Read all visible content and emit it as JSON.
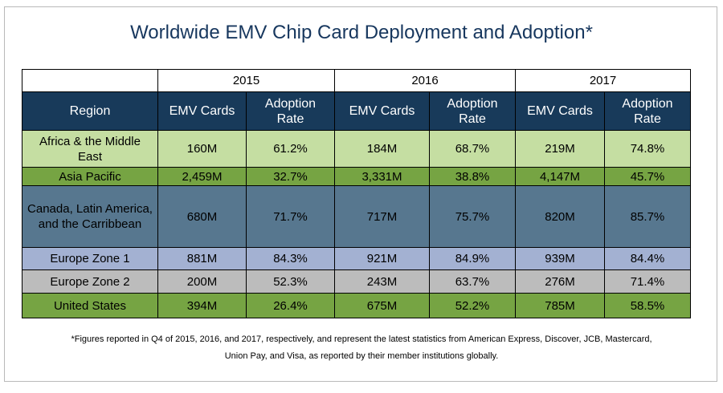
{
  "title": "Worldwide EMV Chip Card Deployment and Adoption*",
  "footnote": {
    "line1": "*Figures reported in Q4 of 2015, 2016, and 2017, respectively, and represent the latest statistics from American Express, Discover, JCB, Mastercard,",
    "line2": "Union Pay, and Visa, as reported by their member institutions globally."
  },
  "colors": {
    "title": "#17375e",
    "header_bg": "#183a5a",
    "africa_bg": "#c5dea2",
    "asia_bg": "#76a443",
    "canada_bg": "#57778f",
    "europe1_bg": "#a3b1d2",
    "europe2_bg": "#bcbcbc",
    "us_bg": "#76a443"
  },
  "chart_data": {
    "type": "table",
    "title": "Worldwide EMV Chip Card Deployment and Adoption*",
    "years": [
      "2015",
      "2016",
      "2017"
    ],
    "columns": [
      "Region",
      "EMV Cards",
      "Adoption Rate",
      "EMV Cards",
      "Adoption Rate",
      "EMV Cards",
      "Adoption Rate"
    ],
    "rows": [
      {
        "region": "Africa & the Middle East",
        "cells": [
          "160M",
          "61.2%",
          "184M",
          "68.7%",
          "219M",
          "74.8%"
        ]
      },
      {
        "region": "Asia Pacific",
        "cells": [
          "2,459M",
          "32.7%",
          "3,331M",
          "38.8%",
          "4,147M",
          "45.7%"
        ]
      },
      {
        "region": "Canada, Latin America, and the Carribbean",
        "cells": [
          "680M",
          "71.7%",
          "717M",
          "75.7%",
          "820M",
          "85.7%"
        ]
      },
      {
        "region": "Europe Zone 1",
        "cells": [
          "881M",
          "84.3%",
          "921M",
          "84.9%",
          "939M",
          "84.4%"
        ]
      },
      {
        "region": "Europe Zone 2",
        "cells": [
          "200M",
          "52.3%",
          "243M",
          "63.7%",
          "276M",
          "71.4%"
        ]
      },
      {
        "region": "United States",
        "cells": [
          "394M",
          "26.4%",
          "675M",
          "52.2%",
          "785M",
          "58.5%"
        ]
      }
    ]
  }
}
